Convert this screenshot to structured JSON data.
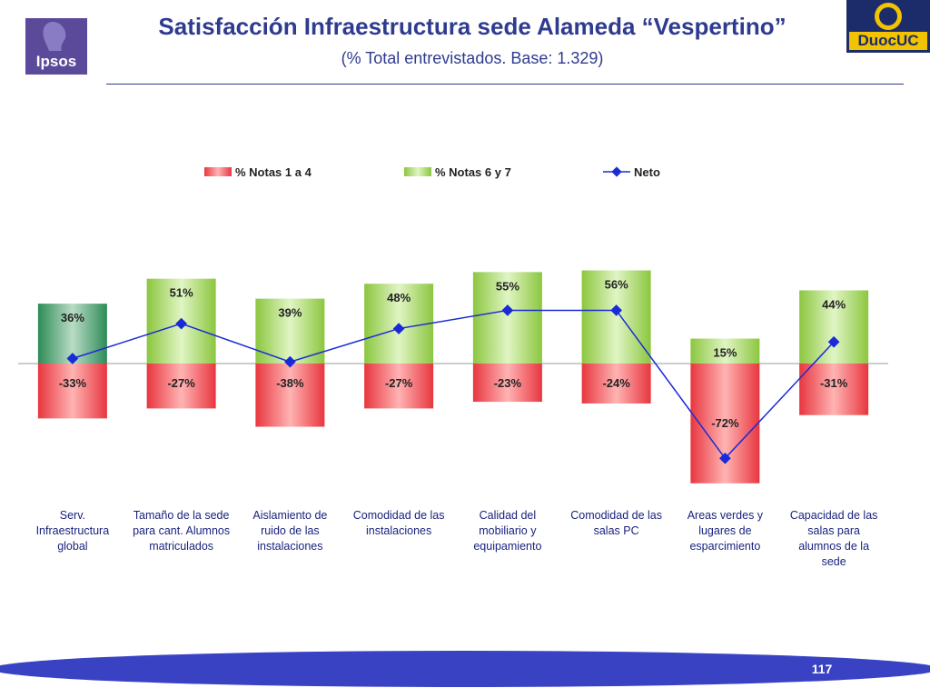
{
  "header": {
    "title": "Satisfacción Infraestructura sede Alameda “Vespertino”",
    "subtitle": "(% Total entrevistados. Base: 1.329)",
    "logo_left": "Ipsos",
    "logo_right": "DuocUC"
  },
  "footer": {
    "page_number": "117"
  },
  "colors": {
    "negative": "#e8363f",
    "positive": "#8cc63f",
    "positive_first": "#2e8b57",
    "net": "#1a2bd6",
    "title": "#2e3b8f"
  },
  "chart_data": {
    "type": "bar",
    "categories": [
      [
        "Serv.",
        "Infraestructura",
        "global"
      ],
      [
        "Tamaño de la sede",
        "para cant. Alumnos",
        "matriculados"
      ],
      [
        "Aislamiento de",
        "ruido de las",
        "instalaciones"
      ],
      [
        "Comodidad de las",
        "instalaciones"
      ],
      [
        "Calidad del",
        "mobiliario y",
        "equipamiento"
      ],
      [
        "Comodidad de las",
        "salas PC"
      ],
      [
        "Areas verdes y",
        "lugares de",
        "esparcimiento"
      ],
      [
        "Capacidad de las",
        "salas para",
        "alumnos de la",
        "sede"
      ]
    ],
    "series": [
      {
        "name": "% Notas 1 a 4",
        "values": [
          -33,
          -27,
          -38,
          -27,
          -23,
          -24,
          -72,
          -31
        ],
        "labels": [
          "-33%",
          "-27%",
          "-38%",
          "-27%",
          "-23%",
          "-24%",
          "-72%",
          "-31%"
        ]
      },
      {
        "name": "% Notas 6 y 7",
        "values": [
          36,
          51,
          39,
          48,
          55,
          56,
          15,
          44
        ],
        "labels": [
          "36%",
          "51%",
          "39%",
          "48%",
          "55%",
          "56%",
          "15%",
          "44%"
        ]
      },
      {
        "name": "Neto",
        "type": "line",
        "values": [
          3,
          24,
          1,
          21,
          32,
          32,
          -57,
          13
        ]
      }
    ],
    "legend_position": "top",
    "grid": false
  }
}
